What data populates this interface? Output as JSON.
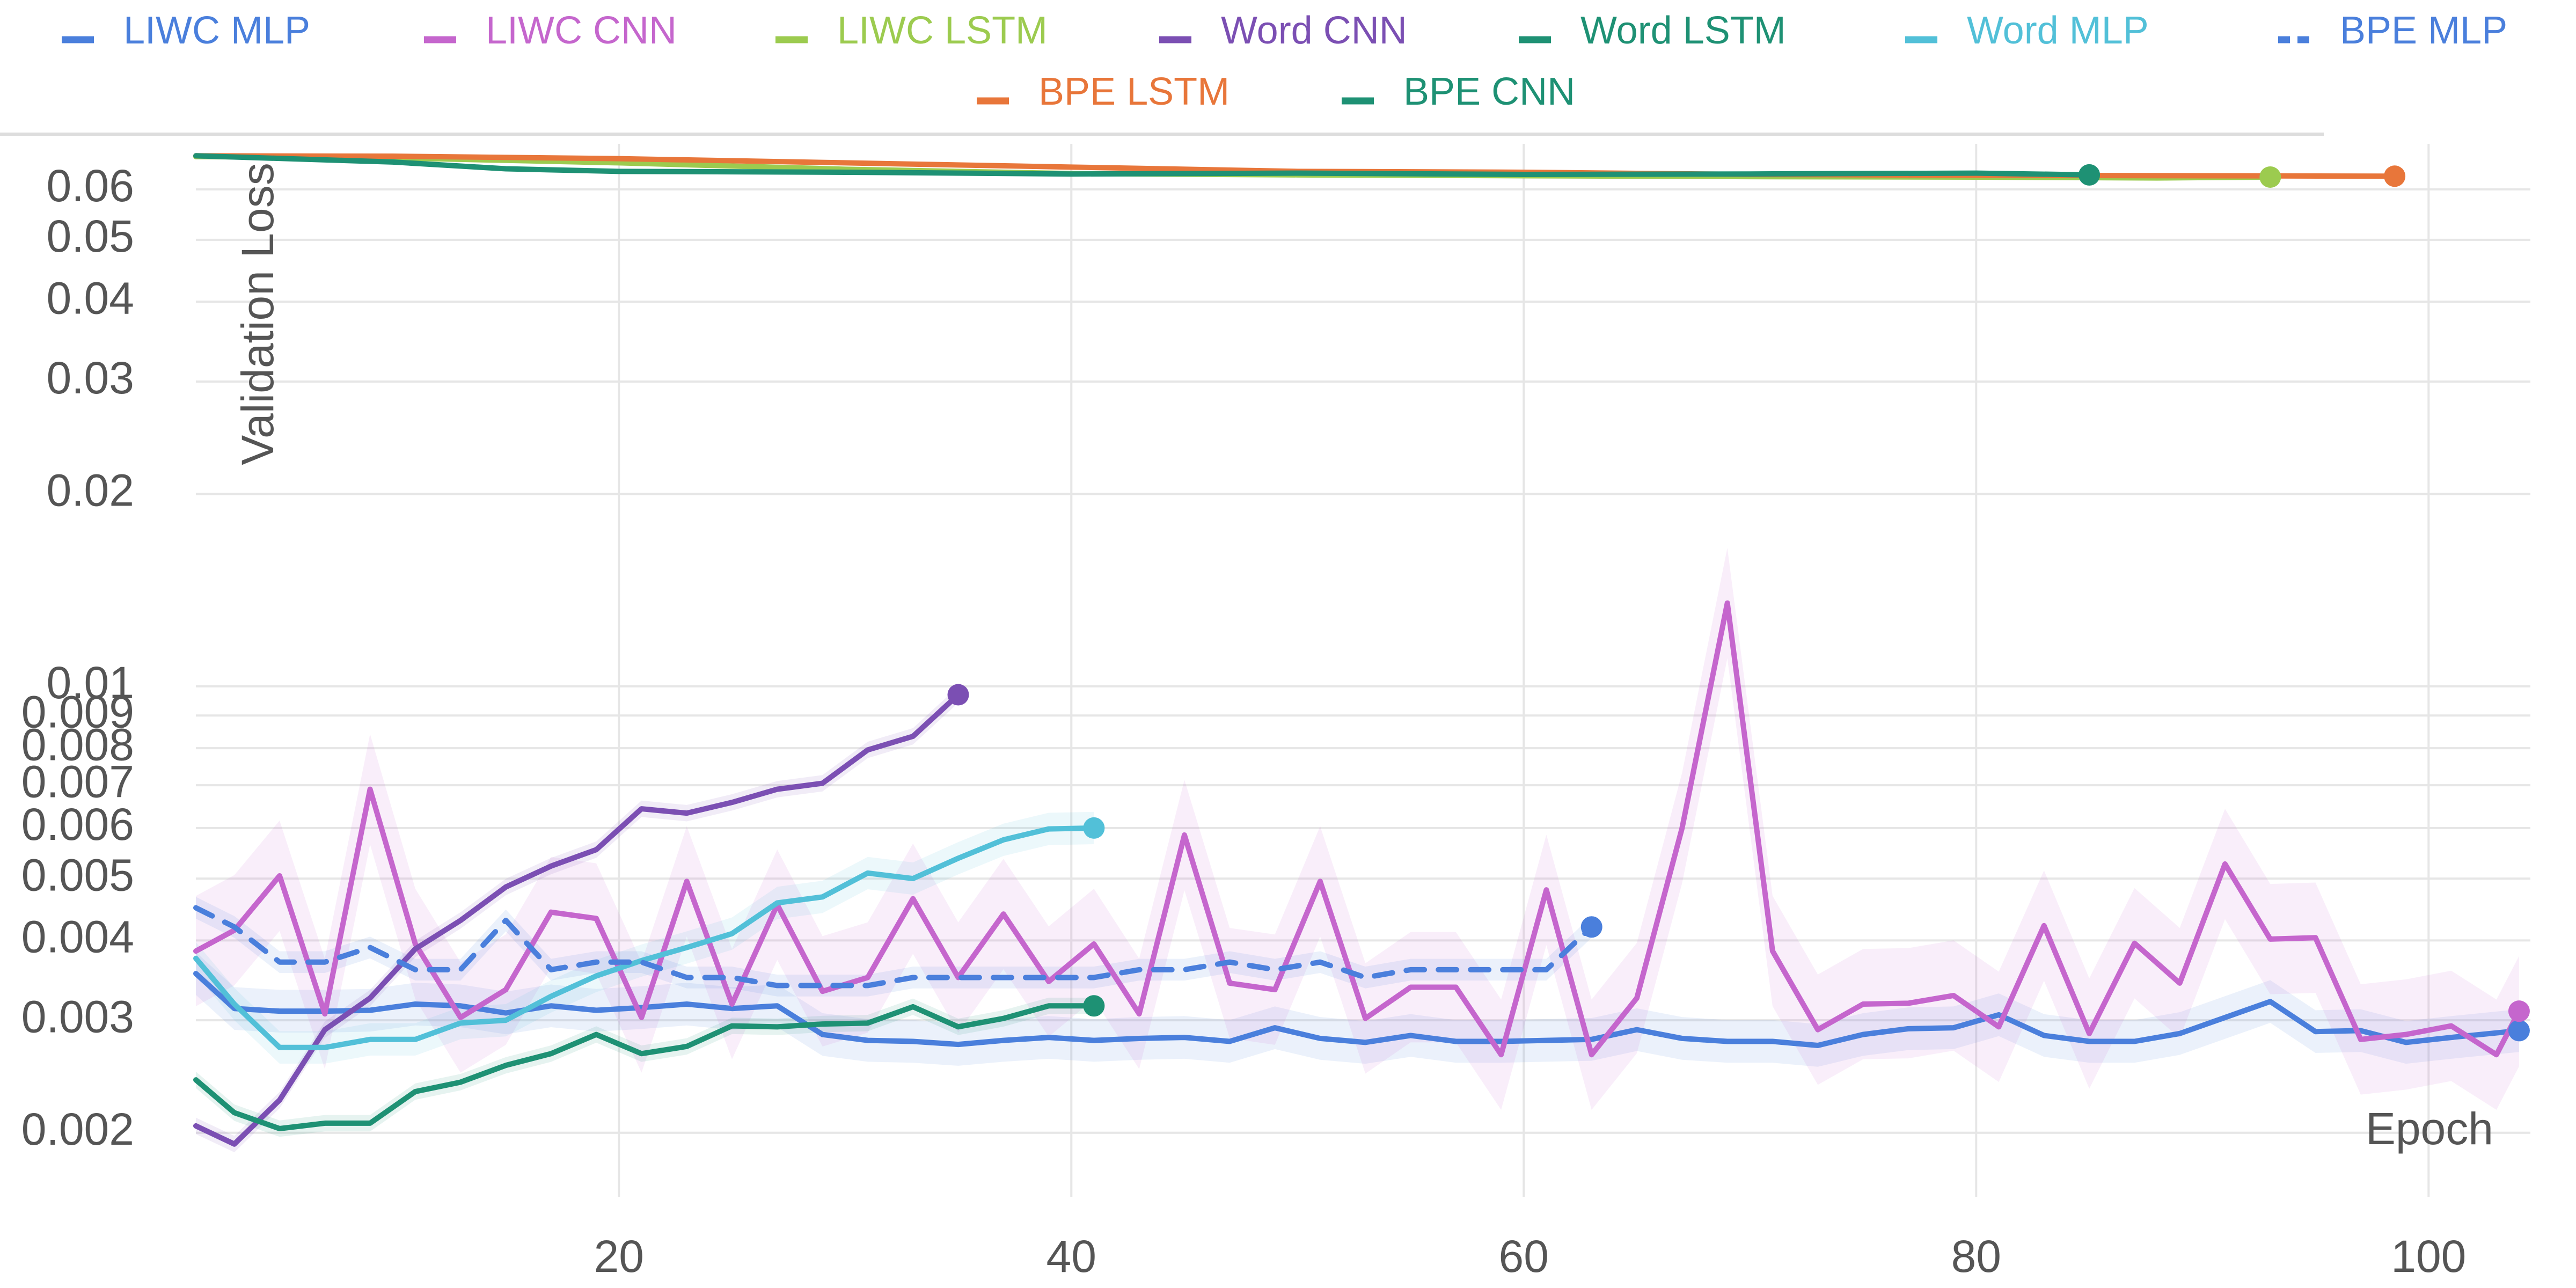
{
  "chart_data": {
    "type": "line",
    "title": "",
    "xlabel": "Epoch",
    "ylabel": "Validation Loss",
    "y_scale": "log",
    "xlim": [
      1.3,
      104.5
    ],
    "ylim": [
      0.00185,
      0.068
    ],
    "x_ticks": [
      20,
      40,
      60,
      80,
      100
    ],
    "y_ticks": [
      {
        "value": 0.002,
        "label": "0.002"
      },
      {
        "value": 0.003,
        "label": "0.003"
      },
      {
        "value": 0.004,
        "label": "0.004"
      },
      {
        "value": 0.005,
        "label": "0.005"
      },
      {
        "value": 0.006,
        "label": "0.006"
      },
      {
        "value": 0.007,
        "label": "0.007"
      },
      {
        "value": 0.008,
        "label": "0.008"
      },
      {
        "value": 0.009,
        "label": "0.009"
      },
      {
        "value": 0.01,
        "label": "0.01"
      },
      {
        "value": 0.02,
        "label": "0.02"
      },
      {
        "value": 0.03,
        "label": "0.03"
      },
      {
        "value": 0.04,
        "label": "0.04"
      },
      {
        "value": 0.05,
        "label": "0.05"
      },
      {
        "value": 0.06,
        "label": "0.06"
      }
    ],
    "grid": true,
    "legend_position": "top",
    "series": [
      {
        "name": "LIWC MLP",
        "color": "#4a7fdc",
        "dash": "solid",
        "x": [
          1.3,
          3,
          5,
          7,
          9,
          11,
          13,
          15,
          17,
          19,
          21,
          23,
          25,
          27,
          29,
          31,
          33,
          35,
          37,
          39,
          41,
          43,
          45,
          47,
          49,
          51,
          53,
          55,
          57,
          59,
          61,
          63,
          65,
          67,
          69,
          71,
          73,
          75,
          77,
          79,
          81,
          83,
          85,
          87,
          89,
          91,
          93,
          95,
          97,
          99,
          101,
          104
        ],
        "y": [
          0.00355,
          0.00313,
          0.0031,
          0.0031,
          0.00311,
          0.00318,
          0.00316,
          0.00308,
          0.00316,
          0.00311,
          0.00314,
          0.00318,
          0.00313,
          0.00316,
          0.00285,
          0.00279,
          0.00278,
          0.00275,
          0.00279,
          0.00282,
          0.00279,
          0.00281,
          0.00282,
          0.00278,
          0.00292,
          0.00281,
          0.00277,
          0.00284,
          0.00278,
          0.00278,
          0.00279,
          0.0028,
          0.0029,
          0.00281,
          0.00278,
          0.00278,
          0.00274,
          0.00285,
          0.00291,
          0.00292,
          0.00306,
          0.00284,
          0.00278,
          0.00278,
          0.00286,
          0.00303,
          0.00321,
          0.00288,
          0.00289,
          0.00277,
          0.00282,
          0.00289
        ],
        "band": 0.08
      },
      {
        "name": "LIWC CNN",
        "color": "#c566cd",
        "dash": "solid",
        "x": [
          1.3,
          3,
          5,
          7,
          9,
          11,
          13,
          15,
          17,
          19,
          21,
          23,
          25,
          27,
          29,
          31,
          33,
          35,
          37,
          39,
          41,
          43,
          45,
          47,
          49,
          51,
          53,
          55,
          57,
          59,
          61,
          63,
          65,
          67,
          69,
          71,
          73,
          75,
          77,
          79,
          81,
          83,
          85,
          87,
          89,
          91,
          93,
          95,
          97,
          99,
          101,
          103,
          104
        ],
        "y": [
          0.00385,
          0.00415,
          0.00505,
          0.00307,
          0.0069,
          0.00395,
          0.00303,
          0.00335,
          0.00443,
          0.00433,
          0.00303,
          0.00495,
          0.00318,
          0.00455,
          0.00333,
          0.0035,
          0.00465,
          0.0035,
          0.0044,
          0.00345,
          0.00395,
          0.00307,
          0.00585,
          0.00343,
          0.00335,
          0.00495,
          0.00302,
          0.00338,
          0.00338,
          0.00265,
          0.0048,
          0.00265,
          0.00325,
          0.006,
          0.0135,
          0.00385,
          0.0029,
          0.00318,
          0.00319,
          0.00328,
          0.00293,
          0.00422,
          0.00286,
          0.00396,
          0.00343,
          0.00527,
          0.00402,
          0.00404,
          0.0028,
          0.00285,
          0.00294,
          0.00265,
          0.0031
        ],
        "band": 0.22
      },
      {
        "name": "LIWC LSTM",
        "color": "#9ccb4f",
        "dash": "solid",
        "x": [
          1.3,
          10,
          20,
          30,
          40,
          50,
          60,
          70,
          80,
          88,
          93
        ],
        "y": [
          0.0675,
          0.0672,
          0.066,
          0.0645,
          0.0635,
          0.0632,
          0.063,
          0.0628,
          0.0627,
          0.0625,
          0.0627
        ],
        "band": 0
      },
      {
        "name": "Word CNN",
        "color": "#7b4fb3",
        "dash": "solid",
        "x": [
          1.3,
          3,
          5,
          7,
          9,
          11,
          13,
          15,
          17,
          19,
          21,
          23,
          25,
          27,
          29,
          31,
          33,
          35
        ],
        "y": [
          0.00205,
          0.00192,
          0.00225,
          0.0029,
          0.00325,
          0.00388,
          0.0043,
          0.00485,
          0.00523,
          0.00555,
          0.00643,
          0.00633,
          0.00658,
          0.0069,
          0.00705,
          0.00795,
          0.00835,
          0.0097
        ],
        "band": 0.03
      },
      {
        "name": "Word LSTM",
        "color": "#1e9174",
        "dash": "solid",
        "x": [
          1.3,
          3,
          5,
          7,
          9,
          11,
          13,
          15,
          17,
          19,
          21,
          23,
          25,
          27,
          29,
          31,
          33,
          35,
          37,
          39,
          41
        ],
        "y": [
          0.00242,
          0.00215,
          0.00203,
          0.00207,
          0.00207,
          0.00232,
          0.0024,
          0.00255,
          0.00266,
          0.00285,
          0.00266,
          0.00273,
          0.00294,
          0.00293,
          0.00296,
          0.00297,
          0.00315,
          0.00293,
          0.00302,
          0.00316,
          0.00316
        ],
        "band": 0.03
      },
      {
        "name": "Word MLP",
        "color": "#52c0d8",
        "dash": "solid",
        "x": [
          1.3,
          3,
          5,
          7,
          9,
          11,
          13,
          15,
          17,
          19,
          21,
          23,
          25,
          27,
          29,
          31,
          33,
          35,
          37,
          39,
          41
        ],
        "y": [
          0.00375,
          0.00318,
          0.00272,
          0.00272,
          0.0028,
          0.0028,
          0.00297,
          0.003,
          0.00327,
          0.00352,
          0.00372,
          0.0039,
          0.0041,
          0.00458,
          0.00468,
          0.0051,
          0.005,
          0.00538,
          0.00575,
          0.00598,
          0.006
        ],
        "band": 0.06
      },
      {
        "name": "BPE MLP",
        "color": "#4a7fdc",
        "dash": "dashed",
        "x": [
          1.3,
          3,
          5,
          7,
          9,
          11,
          13,
          15,
          17,
          19,
          21,
          23,
          25,
          27,
          29,
          31,
          33,
          35,
          37,
          39,
          41,
          43,
          45,
          47,
          49,
          51,
          53,
          55,
          57,
          59,
          61,
          63
        ],
        "y": [
          0.0045,
          0.0042,
          0.0037,
          0.0037,
          0.0039,
          0.0036,
          0.0036,
          0.0043,
          0.0036,
          0.0037,
          0.0037,
          0.0035,
          0.0035,
          0.0034,
          0.0034,
          0.0034,
          0.0035,
          0.0035,
          0.0035,
          0.0035,
          0.0035,
          0.0036,
          0.0036,
          0.0037,
          0.0036,
          0.0037,
          0.0035,
          0.0036,
          0.0036,
          0.0036,
          0.0036,
          0.0042
        ],
        "band": 0.04
      },
      {
        "name": "BPE LSTM",
        "color": "#e8763a",
        "dash": "solid",
        "x": [
          1.3,
          10,
          20,
          30,
          40,
          50,
          60,
          70,
          80,
          90,
          98.5
        ],
        "y": [
          0.0677,
          0.0676,
          0.067,
          0.066,
          0.065,
          0.064,
          0.0638,
          0.0633,
          0.0631,
          0.063,
          0.0629
        ],
        "band": 0
      },
      {
        "name": "BPE CNN",
        "color": "#1e9174",
        "dash": "solid",
        "x": [
          1.3,
          10,
          15,
          20,
          30,
          40,
          50,
          60,
          70,
          80,
          85
        ],
        "y": [
          0.0677,
          0.0662,
          0.0646,
          0.064,
          0.0638,
          0.0634,
          0.0636,
          0.0633,
          0.0634,
          0.0636,
          0.0632
        ],
        "band": 0
      }
    ]
  }
}
